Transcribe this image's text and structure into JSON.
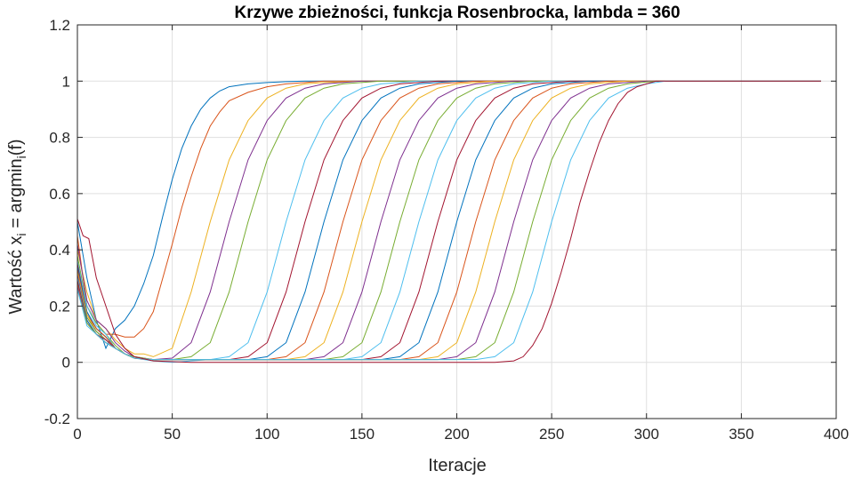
{
  "chart_data": {
    "type": "line",
    "title": "Krzywe zbieżności, funkcja Rosenbrocka, lambda = 360",
    "xlabel": "Iteracje",
    "ylabel": {
      "main": "Wartość x",
      "sub1": "i",
      "mid": " = argmin",
      "sub2": "i",
      "tail": "(f)"
    },
    "xlim": [
      0,
      400
    ],
    "ylim": [
      -0.2,
      1.2
    ],
    "xticks": [
      0,
      50,
      100,
      150,
      200,
      250,
      300,
      350,
      400
    ],
    "yticks": [
      -0.2,
      0,
      0.2,
      0.4,
      0.6,
      0.8,
      1,
      1.2
    ],
    "grid": true,
    "x_end": 392,
    "colors": [
      "#0072BD",
      "#D95319",
      "#EDB120",
      "#7E2F8E",
      "#77AC30",
      "#4DBEEE",
      "#A2142F"
    ],
    "series": [
      {
        "x": [
          0,
          5,
          10,
          15,
          20,
          25,
          30,
          35,
          40,
          45,
          50,
          55,
          60,
          65,
          70,
          75,
          80,
          90,
          100,
          110,
          120,
          130,
          150,
          200,
          300,
          392
        ],
        "y": [
          0.5,
          0.3,
          0.15,
          0.05,
          0.12,
          0.15,
          0.2,
          0.28,
          0.38,
          0.52,
          0.65,
          0.76,
          0.84,
          0.9,
          0.94,
          0.965,
          0.98,
          0.99,
          0.995,
          0.998,
          1,
          1,
          1,
          1,
          1,
          1
        ]
      },
      {
        "x": [
          0,
          5,
          10,
          15,
          20,
          25,
          30,
          35,
          40,
          45,
          50,
          55,
          60,
          65,
          70,
          75,
          80,
          90,
          100,
          110,
          120,
          130,
          150,
          200,
          300,
          392
        ],
        "y": [
          0.45,
          0.2,
          0.14,
          0.1,
          0.1,
          0.09,
          0.09,
          0.12,
          0.18,
          0.3,
          0.42,
          0.55,
          0.66,
          0.76,
          0.84,
          0.89,
          0.93,
          0.96,
          0.98,
          0.99,
          0.995,
          1,
          1,
          1,
          1,
          1
        ]
      },
      {
        "x": [
          0,
          5,
          10,
          15,
          20,
          25,
          30,
          35,
          40,
          50,
          60,
          70,
          80,
          90,
          100,
          110,
          120,
          130,
          150,
          200,
          300,
          392
        ],
        "y": [
          0.4,
          0.25,
          0.15,
          0.12,
          0.08,
          0.05,
          0.03,
          0.03,
          0.02,
          0.05,
          0.25,
          0.5,
          0.72,
          0.86,
          0.94,
          0.975,
          0.99,
          0.995,
          1,
          1,
          1,
          1
        ]
      },
      {
        "x": [
          0,
          5,
          10,
          15,
          20,
          25,
          30,
          35,
          40,
          50,
          60,
          70,
          80,
          90,
          100,
          110,
          120,
          130,
          150,
          200,
          300,
          392
        ],
        "y": [
          0.42,
          0.22,
          0.15,
          0.12,
          0.07,
          0.04,
          0.02,
          0.015,
          0.01,
          0.015,
          0.07,
          0.25,
          0.5,
          0.72,
          0.86,
          0.94,
          0.975,
          0.99,
          1,
          1,
          1,
          1
        ]
      },
      {
        "x": [
          0,
          5,
          10,
          15,
          20,
          25,
          30,
          35,
          40,
          50,
          60,
          70,
          80,
          90,
          100,
          110,
          120,
          130,
          140,
          160,
          200,
          300,
          392
        ],
        "y": [
          0.38,
          0.2,
          0.14,
          0.1,
          0.06,
          0.03,
          0.02,
          0.015,
          0.01,
          0.01,
          0.02,
          0.07,
          0.25,
          0.5,
          0.72,
          0.86,
          0.94,
          0.975,
          0.99,
          1,
          1,
          1,
          1
        ]
      },
      {
        "x": [
          0,
          5,
          10,
          15,
          20,
          25,
          30,
          40,
          50,
          60,
          70,
          80,
          90,
          100,
          110,
          120,
          130,
          140,
          150,
          160,
          180,
          200,
          300,
          392
        ],
        "y": [
          0.36,
          0.2,
          0.13,
          0.1,
          0.05,
          0.03,
          0.015,
          0.005,
          0.0,
          0.005,
          0.01,
          0.02,
          0.07,
          0.25,
          0.5,
          0.72,
          0.86,
          0.94,
          0.975,
          0.99,
          1,
          1,
          1,
          1
        ]
      },
      {
        "x": [
          0,
          5,
          10,
          15,
          20,
          25,
          30,
          40,
          50,
          60,
          80,
          90,
          100,
          110,
          120,
          130,
          140,
          150,
          160,
          170,
          190,
          220,
          300,
          392
        ],
        "y": [
          0.35,
          0.18,
          0.12,
          0.09,
          0.05,
          0.03,
          0.015,
          0.01,
          0.01,
          0.01,
          0.01,
          0.02,
          0.07,
          0.25,
          0.5,
          0.72,
          0.86,
          0.94,
          0.975,
          0.99,
          1,
          1,
          1,
          1
        ]
      },
      {
        "x": [
          0,
          5,
          10,
          15,
          20,
          25,
          30,
          40,
          60,
          90,
          100,
          110,
          120,
          130,
          140,
          150,
          160,
          170,
          180,
          200,
          230,
          300,
          392
        ],
        "y": [
          0.34,
          0.18,
          0.12,
          0.09,
          0.05,
          0.03,
          0.015,
          0.01,
          0.01,
          0.01,
          0.02,
          0.07,
          0.25,
          0.5,
          0.72,
          0.86,
          0.94,
          0.975,
          0.99,
          1,
          1,
          1,
          1
        ]
      },
      {
        "x": [
          0,
          5,
          10,
          15,
          20,
          25,
          30,
          40,
          60,
          100,
          110,
          120,
          130,
          140,
          150,
          160,
          170,
          180,
          190,
          210,
          240,
          300,
          392
        ],
        "y": [
          0.33,
          0.17,
          0.12,
          0.09,
          0.05,
          0.03,
          0.015,
          0.01,
          0.01,
          0.01,
          0.02,
          0.07,
          0.25,
          0.5,
          0.72,
          0.86,
          0.94,
          0.975,
          0.99,
          1,
          1,
          1,
          1
        ]
      },
      {
        "x": [
          0,
          5,
          10,
          15,
          20,
          25,
          30,
          40,
          60,
          110,
          120,
          130,
          140,
          150,
          160,
          170,
          180,
          190,
          200,
          220,
          250,
          300,
          392
        ],
        "y": [
          0.32,
          0.17,
          0.11,
          0.08,
          0.05,
          0.03,
          0.015,
          0.01,
          0.01,
          0.01,
          0.02,
          0.07,
          0.25,
          0.5,
          0.72,
          0.86,
          0.94,
          0.975,
          0.99,
          1,
          1,
          1,
          1
        ]
      },
      {
        "x": [
          0,
          5,
          10,
          15,
          20,
          25,
          30,
          40,
          60,
          120,
          130,
          140,
          150,
          160,
          170,
          180,
          190,
          200,
          210,
          230,
          260,
          300,
          392
        ],
        "y": [
          0.31,
          0.16,
          0.11,
          0.08,
          0.05,
          0.03,
          0.015,
          0.01,
          0.01,
          0.01,
          0.02,
          0.07,
          0.25,
          0.5,
          0.72,
          0.86,
          0.94,
          0.975,
          0.99,
          1,
          1,
          1,
          1
        ]
      },
      {
        "x": [
          0,
          5,
          10,
          15,
          20,
          25,
          30,
          40,
          60,
          130,
          140,
          150,
          160,
          170,
          180,
          190,
          200,
          210,
          220,
          240,
          270,
          300,
          392
        ],
        "y": [
          0.3,
          0.16,
          0.11,
          0.08,
          0.05,
          0.03,
          0.015,
          0.01,
          0.01,
          0.01,
          0.02,
          0.07,
          0.25,
          0.5,
          0.72,
          0.86,
          0.94,
          0.975,
          0.99,
          1,
          1,
          1,
          1
        ]
      },
      {
        "x": [
          0,
          5,
          10,
          15,
          20,
          25,
          30,
          40,
          60,
          140,
          150,
          160,
          170,
          180,
          190,
          200,
          210,
          220,
          230,
          250,
          280,
          300,
          392
        ],
        "y": [
          0.3,
          0.15,
          0.1,
          0.08,
          0.05,
          0.03,
          0.015,
          0.01,
          0.01,
          0.01,
          0.02,
          0.07,
          0.25,
          0.5,
          0.72,
          0.86,
          0.94,
          0.975,
          0.99,
          1,
          1,
          1,
          1
        ]
      },
      {
        "x": [
          0,
          5,
          10,
          15,
          20,
          25,
          30,
          40,
          60,
          150,
          160,
          170,
          180,
          190,
          200,
          210,
          220,
          230,
          240,
          260,
          290,
          300,
          392
        ],
        "y": [
          0.29,
          0.15,
          0.1,
          0.08,
          0.05,
          0.03,
          0.015,
          0.01,
          0.01,
          0.01,
          0.02,
          0.07,
          0.25,
          0.5,
          0.72,
          0.86,
          0.94,
          0.975,
          0.99,
          1,
          1,
          1,
          1
        ]
      },
      {
        "x": [
          0,
          5,
          10,
          15,
          20,
          25,
          30,
          40,
          60,
          160,
          170,
          180,
          190,
          200,
          210,
          220,
          230,
          240,
          250,
          270,
          300,
          392
        ],
        "y": [
          0.28,
          0.15,
          0.1,
          0.07,
          0.05,
          0.03,
          0.015,
          0.01,
          0.01,
          0.01,
          0.02,
          0.07,
          0.25,
          0.5,
          0.72,
          0.86,
          0.94,
          0.975,
          0.99,
          1,
          1,
          1
        ]
      },
      {
        "x": [
          0,
          5,
          10,
          15,
          20,
          25,
          30,
          40,
          60,
          170,
          180,
          190,
          200,
          210,
          220,
          230,
          240,
          250,
          260,
          280,
          300,
          392
        ],
        "y": [
          0.28,
          0.14,
          0.1,
          0.07,
          0.05,
          0.03,
          0.015,
          0.01,
          0.01,
          0.01,
          0.02,
          0.07,
          0.25,
          0.5,
          0.72,
          0.86,
          0.94,
          0.975,
          0.99,
          1,
          1,
          1
        ]
      },
      {
        "x": [
          0,
          5,
          10,
          15,
          20,
          25,
          30,
          40,
          60,
          180,
          190,
          200,
          210,
          220,
          230,
          240,
          250,
          260,
          270,
          290,
          305,
          392
        ],
        "y": [
          0.27,
          0.14,
          0.1,
          0.07,
          0.05,
          0.03,
          0.015,
          0.01,
          0.01,
          0.01,
          0.02,
          0.07,
          0.25,
          0.5,
          0.72,
          0.86,
          0.94,
          0.975,
          0.99,
          1,
          1,
          1
        ]
      },
      {
        "x": [
          0,
          5,
          10,
          15,
          20,
          25,
          30,
          40,
          60,
          190,
          200,
          210,
          220,
          230,
          240,
          250,
          260,
          270,
          280,
          300,
          310,
          392
        ],
        "y": [
          0.27,
          0.14,
          0.1,
          0.07,
          0.05,
          0.03,
          0.015,
          0.01,
          0.01,
          0.01,
          0.02,
          0.07,
          0.25,
          0.5,
          0.72,
          0.86,
          0.94,
          0.975,
          0.99,
          1,
          1,
          1
        ]
      },
      {
        "x": [
          0,
          5,
          10,
          15,
          20,
          25,
          30,
          40,
          60,
          200,
          210,
          220,
          230,
          240,
          250,
          260,
          270,
          280,
          290,
          305,
          315,
          392
        ],
        "y": [
          0.26,
          0.14,
          0.1,
          0.07,
          0.05,
          0.03,
          0.015,
          0.01,
          0.01,
          0.01,
          0.02,
          0.07,
          0.25,
          0.5,
          0.72,
          0.86,
          0.94,
          0.975,
          0.99,
          1,
          1,
          1
        ]
      },
      {
        "x": [
          0,
          5,
          10,
          15,
          20,
          25,
          30,
          40,
          60,
          210,
          220,
          230,
          240,
          250,
          260,
          270,
          280,
          290,
          300,
          310,
          392
        ],
        "y": [
          0.26,
          0.13,
          0.1,
          0.07,
          0.05,
          0.03,
          0.015,
          0.01,
          0.01,
          0.01,
          0.02,
          0.07,
          0.25,
          0.5,
          0.72,
          0.86,
          0.94,
          0.975,
          0.99,
          1,
          1
        ]
      },
      {
        "x": [
          0,
          3,
          6,
          10,
          15,
          20,
          25,
          30,
          40,
          60,
          100,
          150,
          200,
          220,
          230,
          235,
          240,
          245,
          250,
          255,
          260,
          265,
          270,
          275,
          280,
          285,
          290,
          295,
          300,
          305,
          310,
          392
        ],
        "y": [
          0.51,
          0.45,
          0.44,
          0.3,
          0.2,
          0.1,
          0.05,
          0.02,
          0.005,
          0.0,
          0.0,
          0.0,
          0.0,
          0.0,
          0.005,
          0.02,
          0.06,
          0.12,
          0.21,
          0.32,
          0.44,
          0.57,
          0.68,
          0.78,
          0.86,
          0.92,
          0.96,
          0.98,
          0.99,
          1,
          1,
          1
        ]
      }
    ]
  }
}
